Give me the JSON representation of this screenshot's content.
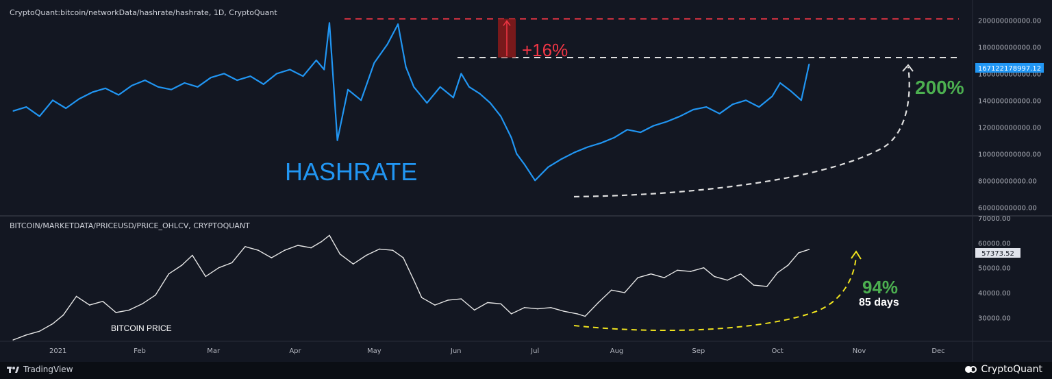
{
  "hashrate_panel": {
    "title": "CryptoQuant:bitcoin/networkData/hashrate/hashrate, 1D, CryptoQuant",
    "label": "HASHRATE",
    "last_value": "167122178997.12",
    "growth_label": "200%",
    "peak_gap_label": "+16%"
  },
  "price_panel": {
    "title": "BITCOIN/MARKETDATA/PRICEUSD/PRICE_OHLCV, CRYPTOQUANT",
    "label": "BITCOIN PRICE",
    "last_value": "57373.52",
    "growth_label": "94%",
    "days_label": "85 days"
  },
  "footer": {
    "left_brand": "TradingView",
    "right_brand": "CryptoQuant"
  },
  "colors": {
    "background": "#131722",
    "hashrate_line": "#2196f3",
    "price_line": "#e6e6e6",
    "red_dash": "#f23645",
    "white_dash": "#e0e0e0",
    "yellow_dash": "#f0e31e",
    "green_text": "#4caf50",
    "red_text": "#f23645"
  },
  "chart_data": [
    {
      "type": "line",
      "series": [
        {
          "x": [
            "2020-12-15",
            "2020-12-20",
            "2020-12-25",
            "2020-12-30",
            "2021-01-04",
            "2021-01-09",
            "2021-01-14",
            "2021-01-19",
            "2021-01-24",
            "2021-01-29",
            "2021-02-03",
            "2021-02-08",
            "2021-02-13",
            "2021-02-18",
            "2021-02-23",
            "2021-02-28",
            "2021-03-05",
            "2021-03-10",
            "2021-03-15",
            "2021-03-20",
            "2021-03-25",
            "2021-03-30",
            "2021-04-04",
            "2021-04-09",
            "2021-04-12",
            "2021-04-14",
            "2021-04-17",
            "2021-04-21",
            "2021-04-26",
            "2021-05-01",
            "2021-05-06",
            "2021-05-10",
            "2021-05-13",
            "2021-05-16",
            "2021-05-21",
            "2021-05-26",
            "2021-05-31",
            "2021-06-03",
            "2021-06-06",
            "2021-06-10",
            "2021-06-14",
            "2021-06-18",
            "2021-06-22",
            "2021-06-24",
            "2021-06-27",
            "2021-07-01",
            "2021-07-06",
            "2021-07-11",
            "2021-07-16",
            "2021-07-21",
            "2021-07-26",
            "2021-07-31",
            "2021-08-05",
            "2021-08-10",
            "2021-08-15",
            "2021-08-20",
            "2021-08-25",
            "2021-08-30",
            "2021-09-04",
            "2021-09-09",
            "2021-09-14",
            "2021-09-19",
            "2021-09-24",
            "2021-09-29",
            "2021-10-02",
            "2021-10-06",
            "2021-10-10",
            "2021-10-13"
          ],
          "values": [
            132000000000,
            135000000000,
            128000000000,
            140000000000,
            134000000000,
            141000000000,
            146000000000,
            149000000000,
            144000000000,
            151000000000,
            155000000000,
            150000000000,
            148000000000,
            153000000000,
            150000000000,
            157000000000,
            160000000000,
            155000000000,
            158000000000,
            152000000000,
            160000000000,
            163000000000,
            158000000000,
            170000000000,
            163000000000,
            198000000000,
            110000000000,
            148000000000,
            140000000000,
            168000000000,
            182000000000,
            197000000000,
            165000000000,
            150000000000,
            138000000000,
            150000000000,
            142000000000,
            160000000000,
            150000000000,
            145000000000,
            138000000000,
            128000000000,
            112000000000,
            100000000000,
            92000000000,
            80000000000,
            90000000000,
            96000000000,
            101000000000,
            105000000000,
            108000000000,
            112000000000,
            118000000000,
            116000000000,
            121000000000,
            124000000000,
            128000000000,
            133000000000,
            135000000000,
            130000000000,
            137000000000,
            140000000000,
            135000000000,
            143000000000,
            153000000000,
            147000000000,
            140000000000,
            167122178997.12
          ]
        }
      ],
      "ylim": [
        55000000000,
        212000000000
      ],
      "y_ticks": [
        "200000000000.00",
        "180000000000.00",
        "160000000000.00",
        "140000000000.00",
        "120000000000.00",
        "100000000000.00",
        "80000000000.00",
        "60000000000.00"
      ],
      "y_tick_values": [
        200000000000,
        180000000000,
        160000000000,
        140000000000,
        120000000000,
        100000000000,
        80000000000,
        60000000000
      ],
      "hlines": [
        {
          "value": 201000000000,
          "style": "red-dash"
        },
        {
          "value": 172000000000,
          "style": "white-dash"
        }
      ]
    },
    {
      "type": "line",
      "series": [
        {
          "x": [
            "2020-12-15",
            "2020-12-20",
            "2020-12-25",
            "2020-12-30",
            "2021-01-03",
            "2021-01-08",
            "2021-01-13",
            "2021-01-18",
            "2021-01-23",
            "2021-01-28",
            "2021-02-02",
            "2021-02-07",
            "2021-02-12",
            "2021-02-17",
            "2021-02-21",
            "2021-02-26",
            "2021-03-03",
            "2021-03-08",
            "2021-03-13",
            "2021-03-18",
            "2021-03-23",
            "2021-03-28",
            "2021-04-02",
            "2021-04-07",
            "2021-04-11",
            "2021-04-14",
            "2021-04-18",
            "2021-04-23",
            "2021-04-28",
            "2021-05-03",
            "2021-05-08",
            "2021-05-12",
            "2021-05-16",
            "2021-05-19",
            "2021-05-24",
            "2021-05-29",
            "2021-06-03",
            "2021-06-08",
            "2021-06-13",
            "2021-06-18",
            "2021-06-22",
            "2021-06-27",
            "2021-07-02",
            "2021-07-07",
            "2021-07-12",
            "2021-07-17",
            "2021-07-20",
            "2021-07-25",
            "2021-07-30",
            "2021-08-04",
            "2021-08-09",
            "2021-08-14",
            "2021-08-19",
            "2021-08-24",
            "2021-08-29",
            "2021-09-03",
            "2021-09-07",
            "2021-09-12",
            "2021-09-17",
            "2021-09-22",
            "2021-09-27",
            "2021-10-01",
            "2021-10-05",
            "2021-10-09",
            "2021-10-13"
          ],
          "values": [
            21000,
            23000,
            24500,
            27500,
            31000,
            38500,
            35000,
            36500,
            32000,
            33000,
            35500,
            39000,
            47500,
            51000,
            55000,
            46500,
            50000,
            52000,
            58500,
            57000,
            54000,
            57000,
            59000,
            58000,
            60500,
            63000,
            55500,
            51500,
            55000,
            57500,
            57000,
            54000,
            45000,
            38000,
            35000,
            37000,
            37500,
            33000,
            36000,
            35500,
            31500,
            34000,
            33500,
            34000,
            32500,
            31500,
            30500,
            36000,
            41000,
            40000,
            46000,
            47500,
            46000,
            49000,
            48500,
            50000,
            46500,
            45000,
            47500,
            43000,
            42500,
            48000,
            51000,
            56000,
            57373.52
          ]
        }
      ],
      "ylim": [
        21000,
        70000
      ],
      "y_ticks": [
        "70000.00",
        "60000.00",
        "50000.00",
        "40000.00",
        "30000.00"
      ],
      "y_tick_values": [
        70000,
        60000,
        50000,
        40000,
        30000
      ]
    }
  ],
  "x_axis": {
    "ticks": [
      "2021",
      "Feb",
      "Mar",
      "Apr",
      "May",
      "Jun",
      "Jul",
      "Aug",
      "Sep",
      "Oct",
      "Nov",
      "Dec"
    ],
    "tick_dates": [
      "2021-01-01",
      "2021-02-01",
      "2021-03-01",
      "2021-04-01",
      "2021-05-01",
      "2021-06-01",
      "2021-07-01",
      "2021-08-01",
      "2021-09-01",
      "2021-10-01",
      "2021-11-01",
      "2021-12-01"
    ],
    "start": "2020-12-10",
    "end": "2021-12-14"
  }
}
